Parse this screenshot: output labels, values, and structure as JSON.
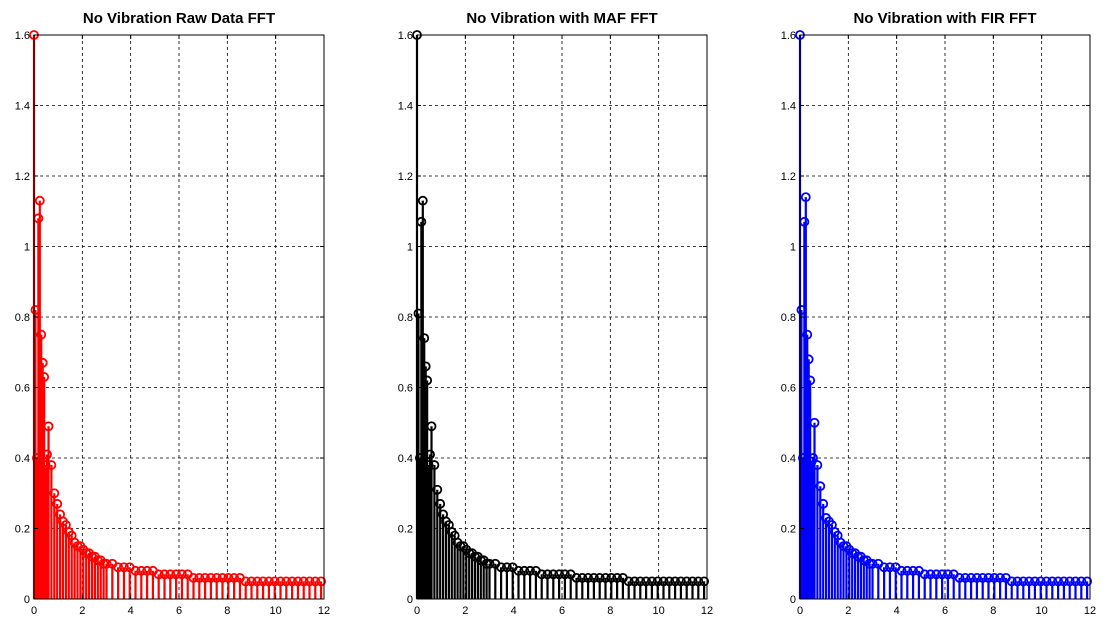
{
  "chart_data": [
    {
      "type": "stem",
      "title": "No Vibration Raw Data FFT",
      "color": "#ff0000",
      "xlim": [
        0,
        12
      ],
      "ylim": [
        0,
        1.6
      ],
      "xticks": [
        0,
        2,
        4,
        6,
        8,
        10,
        12
      ],
      "yticks": [
        0,
        0.2,
        0.4,
        0.6,
        0.8,
        1,
        1.2,
        1.4,
        1.6
      ],
      "grid": true,
      "series": [
        {
          "x": [
            0,
            0.06,
            0.12,
            0.18,
            0.24,
            0.3,
            0.36,
            0.42,
            0.48,
            0.54,
            0.6,
            0.72,
            0.84,
            0.96,
            1.08,
            1.2,
            1.32,
            1.44,
            1.56,
            1.68,
            1.8,
            1.92,
            2.04,
            2.16,
            2.28,
            2.4,
            2.52,
            2.64,
            2.76,
            2.88,
            3.0,
            3.24,
            3.48,
            3.72,
            3.96,
            4.2,
            4.44,
            4.68,
            4.92,
            5.16,
            5.4,
            5.64,
            5.88,
            6.12,
            6.36,
            6.6,
            6.84,
            7.08,
            7.32,
            7.56,
            7.8,
            8.04,
            8.28,
            8.52,
            8.76,
            9.0,
            9.24,
            9.48,
            9.72,
            9.96,
            10.2,
            10.44,
            10.68,
            10.92,
            11.16,
            11.4,
            11.64,
            11.88
          ],
          "y": [
            1.6,
            0.82,
            0.4,
            1.08,
            1.13,
            0.75,
            0.67,
            0.63,
            0.38,
            0.41,
            0.49,
            0.38,
            0.3,
            0.27,
            0.24,
            0.22,
            0.21,
            0.19,
            0.18,
            0.16,
            0.15,
            0.15,
            0.14,
            0.13,
            0.13,
            0.12,
            0.12,
            0.11,
            0.11,
            0.1,
            0.1,
            0.1,
            0.09,
            0.09,
            0.09,
            0.08,
            0.08,
            0.08,
            0.08,
            0.07,
            0.07,
            0.07,
            0.07,
            0.07,
            0.07,
            0.06,
            0.06,
            0.06,
            0.06,
            0.06,
            0.06,
            0.06,
            0.06,
            0.06,
            0.05,
            0.05,
            0.05,
            0.05,
            0.05,
            0.05,
            0.05,
            0.05,
            0.05,
            0.05,
            0.05,
            0.05,
            0.05,
            0.05
          ]
        }
      ]
    },
    {
      "type": "stem",
      "title": "No Vibration with MAF FFT",
      "color": "#000000",
      "xlim": [
        0,
        12
      ],
      "ylim": [
        0,
        1.6
      ],
      "xticks": [
        0,
        2,
        4,
        6,
        8,
        10,
        12
      ],
      "yticks": [
        0,
        0.2,
        0.4,
        0.6,
        0.8,
        1,
        1.2,
        1.4,
        1.6
      ],
      "grid": true,
      "series": [
        {
          "x": [
            0,
            0.06,
            0.12,
            0.18,
            0.24,
            0.3,
            0.36,
            0.42,
            0.48,
            0.54,
            0.6,
            0.72,
            0.84,
            0.96,
            1.08,
            1.2,
            1.32,
            1.44,
            1.56,
            1.68,
            1.8,
            1.92,
            2.04,
            2.16,
            2.28,
            2.4,
            2.52,
            2.64,
            2.76,
            2.88,
            3.0,
            3.24,
            3.48,
            3.72,
            3.96,
            4.2,
            4.44,
            4.68,
            4.92,
            5.16,
            5.4,
            5.64,
            5.88,
            6.12,
            6.36,
            6.6,
            6.84,
            7.08,
            7.32,
            7.56,
            7.8,
            8.04,
            8.28,
            8.52,
            8.76,
            9.0,
            9.24,
            9.48,
            9.72,
            9.96,
            10.2,
            10.44,
            10.68,
            10.92,
            11.16,
            11.4,
            11.64,
            11.88
          ],
          "y": [
            1.6,
            0.81,
            0.4,
            1.07,
            1.13,
            0.74,
            0.66,
            0.62,
            0.38,
            0.41,
            0.49,
            0.38,
            0.31,
            0.27,
            0.24,
            0.22,
            0.21,
            0.19,
            0.18,
            0.16,
            0.15,
            0.15,
            0.14,
            0.13,
            0.13,
            0.12,
            0.12,
            0.11,
            0.11,
            0.1,
            0.1,
            0.1,
            0.09,
            0.09,
            0.09,
            0.08,
            0.08,
            0.08,
            0.08,
            0.07,
            0.07,
            0.07,
            0.07,
            0.07,
            0.07,
            0.06,
            0.06,
            0.06,
            0.06,
            0.06,
            0.06,
            0.06,
            0.06,
            0.06,
            0.05,
            0.05,
            0.05,
            0.05,
            0.05,
            0.05,
            0.05,
            0.05,
            0.05,
            0.05,
            0.05,
            0.05,
            0.05,
            0.05
          ]
        }
      ]
    },
    {
      "type": "stem",
      "title": "No Vibration with FIR FFT",
      "color": "#0000ff",
      "xlim": [
        0,
        12
      ],
      "ylim": [
        0,
        1.6
      ],
      "xticks": [
        0,
        2,
        4,
        6,
        8,
        10,
        12
      ],
      "yticks": [
        0,
        0.2,
        0.4,
        0.6,
        0.8,
        1,
        1.2,
        1.4,
        1.6
      ],
      "grid": true,
      "series": [
        {
          "x": [
            0,
            0.06,
            0.12,
            0.18,
            0.24,
            0.3,
            0.36,
            0.42,
            0.48,
            0.54,
            0.6,
            0.72,
            0.84,
            0.96,
            1.08,
            1.2,
            1.32,
            1.44,
            1.56,
            1.68,
            1.8,
            1.92,
            2.04,
            2.16,
            2.28,
            2.4,
            2.52,
            2.64,
            2.76,
            2.88,
            3.0,
            3.24,
            3.48,
            3.72,
            3.96,
            4.2,
            4.44,
            4.68,
            4.92,
            5.16,
            5.4,
            5.64,
            5.88,
            6.12,
            6.36,
            6.6,
            6.84,
            7.08,
            7.32,
            7.56,
            7.8,
            8.04,
            8.28,
            8.52,
            8.76,
            9.0,
            9.24,
            9.48,
            9.72,
            9.96,
            10.2,
            10.44,
            10.68,
            10.92,
            11.16,
            11.4,
            11.64,
            11.88
          ],
          "y": [
            1.6,
            0.82,
            0.4,
            1.07,
            1.14,
            0.75,
            0.68,
            0.62,
            0.39,
            0.4,
            0.5,
            0.38,
            0.32,
            0.27,
            0.23,
            0.22,
            0.21,
            0.19,
            0.18,
            0.16,
            0.15,
            0.15,
            0.14,
            0.13,
            0.13,
            0.12,
            0.12,
            0.11,
            0.11,
            0.1,
            0.1,
            0.1,
            0.09,
            0.09,
            0.09,
            0.08,
            0.08,
            0.08,
            0.08,
            0.07,
            0.07,
            0.07,
            0.07,
            0.07,
            0.07,
            0.06,
            0.06,
            0.06,
            0.06,
            0.06,
            0.06,
            0.06,
            0.06,
            0.06,
            0.05,
            0.05,
            0.05,
            0.05,
            0.05,
            0.05,
            0.05,
            0.05,
            0.05,
            0.05,
            0.05,
            0.05,
            0.05,
            0.05
          ]
        }
      ]
    }
  ]
}
